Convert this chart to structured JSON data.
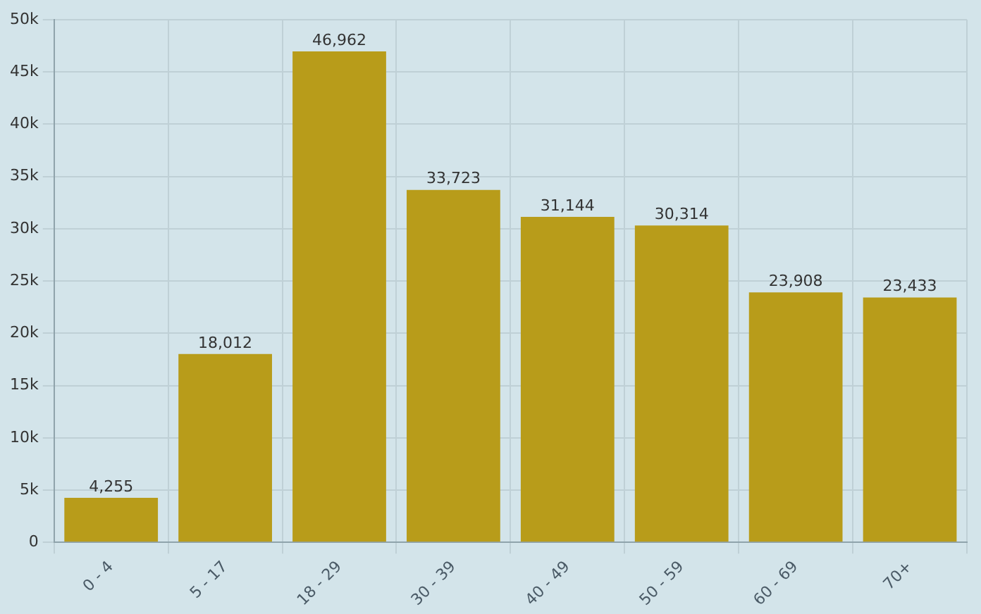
{
  "chart_data": {
    "type": "bar",
    "categories": [
      "0 - 4",
      "5 - 17",
      "18 - 29",
      "30 - 39",
      "40 - 49",
      "50 - 59",
      "60 - 69",
      "70+"
    ],
    "values": [
      4255,
      18012,
      46962,
      33723,
      31144,
      30314,
      23908,
      23433
    ],
    "color": "#b89c1a",
    "ylim": [
      0,
      50000
    ],
    "yticks": [
      0,
      {
        "value": 5000,
        "label": "5k"
      },
      {
        "value": 10000,
        "label": "10k"
      },
      {
        "value": 15000,
        "label": "15k"
      },
      {
        "value": 20000,
        "label": "20k"
      },
      {
        "value": 25000,
        "label": "25k"
      },
      {
        "value": 30000,
        "label": "30k"
      },
      {
        "value": 35000,
        "label": "35k"
      },
      {
        "value": 40000,
        "label": "40k"
      },
      {
        "value": 45000,
        "label": "45k"
      },
      {
        "value": 50000,
        "label": "50k"
      }
    ],
    "grid": true,
    "value_labels": [
      "4,255",
      "18,012",
      "46,962",
      "33,723",
      "31,144",
      "30,314",
      "23,908",
      "23,433"
    ]
  }
}
